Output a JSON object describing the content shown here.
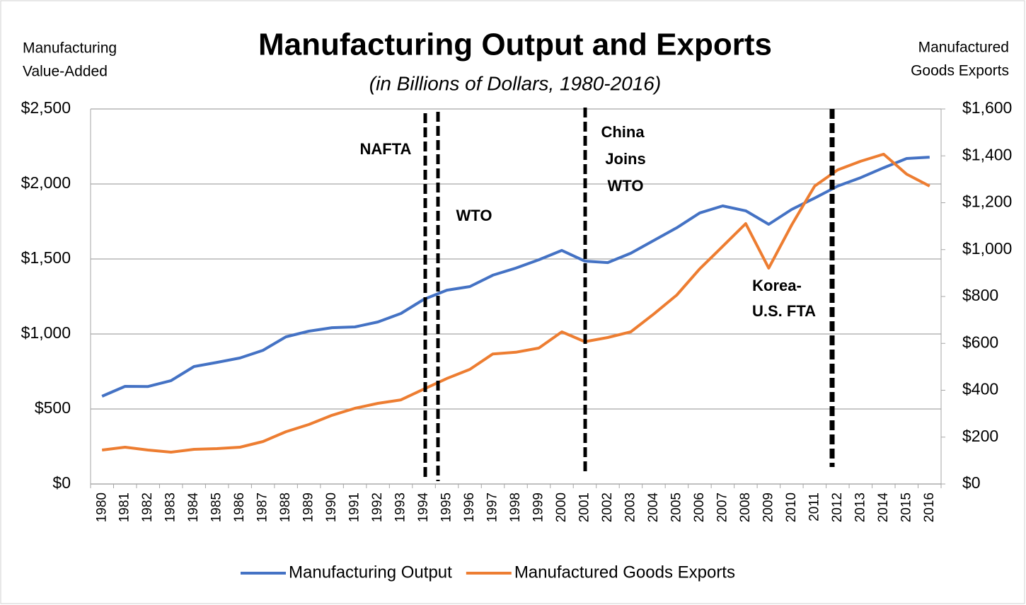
{
  "chart_data": {
    "type": "line",
    "title": "Manufacturing Output and Exports",
    "subtitle": "(in Billions of Dollars, 1980-2016)",
    "y_label": [
      "Manufacturing",
      "Value-Added"
    ],
    "y2_label": [
      "Manufactured",
      "Goods Exports"
    ],
    "categories": [
      "1980",
      "1981",
      "1982",
      "1983",
      "1984",
      "1985",
      "1986",
      "1987",
      "1988",
      "1989",
      "1990",
      "1991",
      "1992",
      "1993",
      "1994",
      "1995",
      "1996",
      "1997",
      "1998",
      "1999",
      "2000",
      "2001",
      "2002",
      "2003",
      "2004",
      "2005",
      "2006",
      "2007",
      "2008",
      "2009",
      "2010",
      "2011",
      "2012",
      "2013",
      "2014",
      "2015",
      "2016"
    ],
    "series": [
      {
        "name": "Manufacturing Output",
        "color": "#4472c4",
        "values": [
          585,
          651,
          650,
          689,
          783,
          811,
          840,
          891,
          981,
          1019,
          1042,
          1047,
          1080,
          1137,
          1231,
          1292,
          1316,
          1392,
          1439,
          1495,
          1557,
          1486,
          1476,
          1538,
          1623,
          1708,
          1807,
          1854,
          1821,
          1731,
          1830,
          1906,
          1986,
          2042,
          2108,
          2170,
          2179
        ]
      },
      {
        "name": "Manufactured Goods Exports",
        "color": "#ed7d31",
        "axis": "y2",
        "values": [
          145,
          157,
          145,
          136,
          148,
          151,
          157,
          181,
          223,
          254,
          293,
          323,
          344,
          359,
          405,
          450,
          489,
          555,
          562,
          580,
          649,
          607,
          625,
          649,
          725,
          806,
          918,
          1014,
          1111,
          921,
          1105,
          1271,
          1340,
          1377,
          1407,
          1322,
          1271
        ]
      }
    ],
    "ylim": [
      0,
      2500
    ],
    "yticks": [
      {
        "value": 0,
        "label": "$0"
      },
      {
        "value": 500,
        "label": "$500"
      },
      {
        "value": 1000,
        "label": "$1,000"
      },
      {
        "value": 1500,
        "label": "$1,500"
      },
      {
        "value": 2000,
        "label": "$2,000"
      },
      {
        "value": 2500,
        "label": "$2,500"
      }
    ],
    "y2lim": [
      0,
      1600
    ],
    "y2ticks": [
      {
        "value": 0,
        "label": "$0"
      },
      {
        "value": 200,
        "label": "$200"
      },
      {
        "value": 400,
        "label": "$400"
      },
      {
        "value": 600,
        "label": "$600"
      },
      {
        "value": 800,
        "label": "$800"
      },
      {
        "value": 1000,
        "label": "$1,000"
      },
      {
        "value": 1200,
        "label": "$1,200"
      },
      {
        "value": 1400,
        "label": "$1,400"
      },
      {
        "value": 1600,
        "label": "$1,600"
      }
    ],
    "grid": true,
    "legend": "bottom",
    "annotations": {
      "nafta": "NAFTA",
      "wto": "WTO",
      "china": [
        "China",
        "Joins",
        "WTO"
      ],
      "korea": [
        "Korea-",
        "U.S. FTA"
      ]
    }
  }
}
